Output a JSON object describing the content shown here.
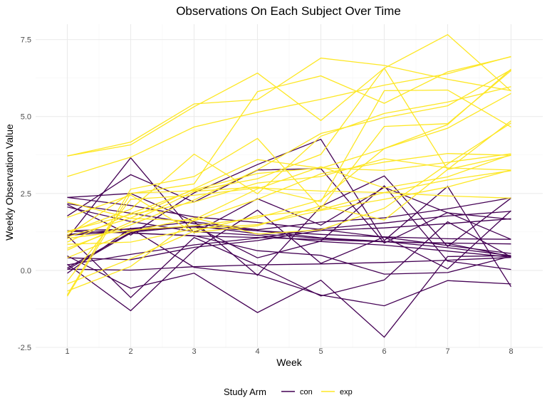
{
  "chart_data": {
    "type": "line",
    "title": "Observations On Each Subject Over Time",
    "xlabel": "Week",
    "ylabel": "Weekly Observation Value",
    "x": [
      1,
      2,
      3,
      4,
      5,
      6,
      7,
      8
    ],
    "xlim": [
      0.5,
      8.5
    ],
    "ylim": [
      -2.5,
      8.0
    ],
    "xticks": [
      "1",
      "2",
      "3",
      "4",
      "5",
      "6",
      "7",
      "8"
    ],
    "yticks": [
      -2.5,
      0.0,
      2.5,
      5.0,
      7.5
    ],
    "ytick_labels": [
      "-2.5",
      "0.0",
      "2.5",
      "5.0",
      "7.5"
    ],
    "grid": true,
    "legend": {
      "title": "Study Arm",
      "placement": "bottom",
      "entries": [
        "con",
        "exp"
      ]
    },
    "colors": {
      "con": "#440154",
      "exp": "#fde725"
    },
    "series": [
      {
        "name": "con",
        "values": [
          0.2,
          -1.31,
          0.66,
          1.96,
          0.23,
          1.09,
          0.05,
          1.94
        ]
      },
      {
        "name": "con",
        "values": [
          1.13,
          -0.88,
          1.07,
          0.17,
          -0.83,
          -0.31,
          1.58,
          0.44
        ]
      },
      {
        "name": "con",
        "values": [
          1.77,
          3.11,
          2.22,
          3.26,
          3.31,
          0.89,
          1.88,
          1.01
        ]
      },
      {
        "name": "con",
        "values": [
          1.04,
          3.66,
          1.22,
          2.33,
          1.47,
          2.7,
          1.87,
          1.66
        ]
      },
      {
        "name": "con",
        "values": [
          0.47,
          -0.58,
          -0.09,
          -1.37,
          -0.32,
          -2.17,
          0.45,
          0.48
        ]
      },
      {
        "name": "con",
        "values": [
          2.37,
          2.5,
          1.59,
          -0.16,
          2.08,
          3.07,
          0.78,
          2.35
        ]
      },
      {
        "name": "con",
        "values": [
          0.03,
          1.21,
          1.13,
          0.64,
          0.49,
          -0.12,
          -0.07,
          0.46
        ]
      },
      {
        "name": "con",
        "values": [
          -0.09,
          1.37,
          0.1,
          -0.13,
          -0.8,
          -1.15,
          -0.33,
          -0.44
        ]
      },
      {
        "name": "con",
        "values": [
          0.08,
          1.24,
          1.44,
          0.41,
          0.95,
          2.75,
          0.3,
          0.03
        ]
      },
      {
        "name": "con",
        "values": [
          2.14,
          1.15,
          2.52,
          3.44,
          4.26,
          0.97,
          2.73,
          -0.53
        ]
      },
      {
        "name": "con",
        "values": [
          2.37,
          2.11,
          1.74,
          1.56,
          1.33,
          1.08,
          0.81,
          0.55
        ]
      },
      {
        "name": "con",
        "values": [
          1.14,
          1.28,
          1.45,
          1.19,
          1.04,
          0.93,
          0.88,
          0.45
        ]
      },
      {
        "name": "con",
        "values": [
          0.18,
          0.52,
          0.83,
          1.05,
          1.35,
          1.54,
          1.77,
          1.92
        ]
      },
      {
        "name": "con",
        "values": [
          2.06,
          1.59,
          1.26,
          1.14,
          0.94,
          0.82,
          0.63,
          0.43
        ]
      },
      {
        "name": "con",
        "values": [
          0.04,
          0.01,
          0.12,
          0.18,
          0.21,
          0.26,
          0.33,
          0.42
        ]
      },
      {
        "name": "con",
        "values": [
          0.41,
          0.35,
          0.75,
          0.97,
          1.3,
          1.38,
          1.52,
          1.68
        ]
      },
      {
        "name": "con",
        "values": [
          2.17,
          1.86,
          1.52,
          1.29,
          1.06,
          0.94,
          0.74,
          0.48
        ]
      },
      {
        "name": "con",
        "values": [
          1.29,
          1.34,
          1.41,
          1.29,
          1.17,
          1.09,
          1.03,
          1.01
        ]
      },
      {
        "name": "con",
        "values": [
          1.16,
          1.36,
          1.58,
          1.32,
          1.57,
          1.71,
          2.0,
          2.36
        ]
      },
      {
        "name": "con",
        "values": [
          1.27,
          1.22,
          1.12,
          1.07,
          1.0,
          0.93,
          0.89,
          0.86
        ]
      },
      {
        "name": "exp",
        "values": [
          3.72,
          4.17,
          5.41,
          5.55,
          6.9,
          6.66,
          6.21,
          5.84
        ]
      },
      {
        "name": "exp",
        "values": [
          3.72,
          4.08,
          5.32,
          6.41,
          4.87,
          6.57,
          7.66,
          5.83
        ]
      },
      {
        "name": "exp",
        "values": [
          3.05,
          3.68,
          4.66,
          5.14,
          5.56,
          6.02,
          6.39,
          6.95
        ]
      },
      {
        "name": "exp",
        "values": [
          -0.84,
          2.5,
          2.81,
          5.81,
          6.32,
          5.43,
          6.45,
          6.94
        ]
      },
      {
        "name": "exp",
        "values": [
          1.23,
          1.99,
          3.78,
          2.49,
          4.36,
          5.1,
          5.47,
          5.97
        ]
      },
      {
        "name": "exp",
        "values": [
          -0.8,
          2.64,
          3.05,
          4.29,
          2.02,
          4.68,
          4.77,
          6.49
        ]
      },
      {
        "name": "exp",
        "values": [
          1.04,
          1.31,
          1.45,
          1.71,
          2.29,
          3.96,
          4.74,
          6.54
        ]
      },
      {
        "name": "exp",
        "values": [
          0.72,
          1.48,
          2.29,
          3.27,
          4.45,
          4.96,
          5.35,
          6.52
        ]
      },
      {
        "name": "exp",
        "values": [
          1.09,
          1.7,
          2.65,
          3.6,
          3.32,
          3.96,
          4.62,
          5.75
        ]
      },
      {
        "name": "exp",
        "values": [
          2.22,
          1.69,
          1.61,
          2.31,
          3.14,
          3.52,
          3.8,
          3.74
        ]
      },
      {
        "name": "exp",
        "values": [
          -0.67,
          0.13,
          1.65,
          2.65,
          3.37,
          2.68,
          3.04,
          3.76
        ]
      },
      {
        "name": "exp",
        "values": [
          -0.35,
          2.31,
          2.44,
          2.68,
          2.58,
          2.53,
          2.42,
          2.35
        ]
      },
      {
        "name": "exp",
        "values": [
          0.85,
          0.92,
          1.35,
          1.49,
          1.95,
          2.31,
          2.71,
          3.26
        ]
      },
      {
        "name": "exp",
        "values": [
          1.27,
          1.82,
          2.22,
          2.84,
          3.05,
          3.63,
          3.33,
          3.26
        ]
      },
      {
        "name": "exp",
        "values": [
          0.41,
          1.26,
          1.71,
          1.18,
          1.32,
          2.02,
          3.46,
          4.79
        ]
      },
      {
        "name": "exp",
        "values": [
          1.14,
          2.51,
          2.59,
          2.98,
          3.77,
          6.57,
          3.28,
          4.86
        ]
      },
      {
        "name": "exp",
        "values": [
          0.66,
          1.57,
          2.57,
          2.71,
          2.23,
          5.84,
          5.86,
          4.66
        ]
      },
      {
        "name": "exp",
        "values": [
          1.72,
          2.45,
          1.23,
          1.45,
          2.1,
          1.64,
          3.28,
          3.74
        ]
      },
      {
        "name": "exp",
        "values": [
          0.92,
          1.85,
          2.62,
          3.15,
          3.33,
          3.25,
          3.51,
          3.79
        ]
      },
      {
        "name": "exp",
        "values": [
          -0.44,
          0.38,
          1.28,
          1.77,
          1.98,
          2.53,
          2.94,
          3.24
        ]
      }
    ]
  }
}
